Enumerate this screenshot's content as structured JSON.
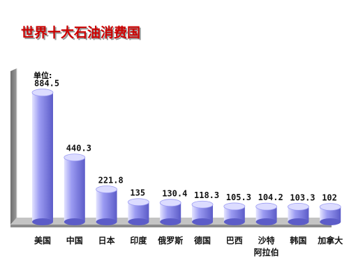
{
  "chart_data": {
    "type": "bar",
    "title": "世界十大石油消费国",
    "unit_label": "单位:",
    "categories": [
      "美国",
      "中国",
      "日本",
      "印度",
      "俄罗斯",
      "德国",
      "巴西",
      "沙特阿拉伯",
      "韩国",
      "加拿大"
    ],
    "category_lines": [
      [
        "美国"
      ],
      [
        "中国"
      ],
      [
        "日本"
      ],
      [
        "印度"
      ],
      [
        "俄罗斯"
      ],
      [
        "德国"
      ],
      [
        "巴西"
      ],
      [
        "沙特",
        "阿拉伯"
      ],
      [
        "韩国"
      ],
      [
        "加拿大"
      ]
    ],
    "values": [
      884.5,
      440.3,
      221.8,
      135,
      130.4,
      118.3,
      105.3,
      104.2,
      103.3,
      102
    ],
    "value_labels": [
      "884.5",
      "440.3",
      "221.8",
      "135",
      "130.4",
      "118.3",
      "105.3",
      "104.2",
      "103.3",
      "102"
    ],
    "ylim": [
      0,
      1050
    ],
    "grid": false,
    "legend": "none"
  },
  "colors": {
    "title": "#cc0000",
    "title_shadow": "#9a9a9a",
    "bar_light": "#e4e4ff",
    "bar_mid": "#9b9bf2",
    "bar_dark": "#5c5cc8",
    "bar_top": "#dcdcff",
    "wall": "#6e6e6e",
    "wall_edge": "#d8d8d8",
    "floor": "#c4c4c4",
    "floor_shadow": "#8c8c8c"
  }
}
